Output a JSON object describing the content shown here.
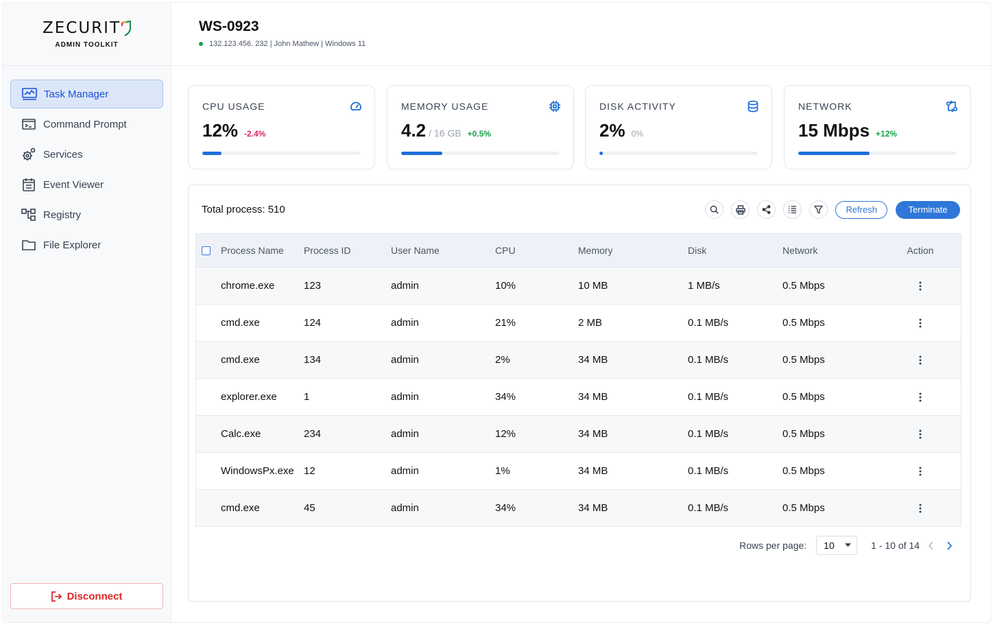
{
  "brand": {
    "name": "ZECURIT",
    "subtitle": "ADMIN TOOLKIT"
  },
  "sidebar": {
    "items": [
      {
        "label": "Task Manager",
        "icon": "chart-monitor-icon",
        "active": true
      },
      {
        "label": "Command Prompt",
        "icon": "terminal-icon"
      },
      {
        "label": "Services",
        "icon": "gears-icon"
      },
      {
        "label": "Event Viewer",
        "icon": "calendar-list-icon"
      },
      {
        "label": "Registry",
        "icon": "hierarchy-icon"
      },
      {
        "label": "File Explorer",
        "icon": "folder-icon"
      }
    ],
    "disconnect_label": "Disconnect"
  },
  "header": {
    "title": "WS-0923",
    "ip": "132.123.456. 232",
    "user": "John Mathew",
    "os": "Windows 11",
    "status_color": "#16a34a"
  },
  "stats": [
    {
      "title": "CPU USAGE",
      "value": "12%",
      "sub": "",
      "delta": "-2.4%",
      "trend": "negative",
      "progress": 0.12,
      "icon": "speedometer-icon"
    },
    {
      "title": "MEMORY USAGE",
      "value": "4.2",
      "sub": "/ 16 GB",
      "delta": "+0.5%",
      "trend": "positive",
      "progress": 0.26,
      "icon": "chip-icon"
    },
    {
      "title": "DISK ACTIVITY",
      "value": "2%",
      "sub": "",
      "delta": "0%",
      "trend": "neutral",
      "progress": 0.02,
      "icon": "database-icon"
    },
    {
      "title": "NETWORK",
      "value": "15 Mbps",
      "sub": "",
      "delta": "+12%",
      "trend": "positive",
      "progress": 0.45,
      "icon": "network-icon"
    }
  ],
  "accent_color": "#2f77d8",
  "processes": {
    "total_label": "Total process: 510",
    "refresh_label": "Refresh",
    "terminate_label": "Terminate",
    "tools": [
      "search-icon",
      "print-icon",
      "share-icon",
      "list-icon",
      "filter-icon"
    ],
    "columns": [
      "Process Name",
      "Process ID",
      "User Name",
      "CPU",
      "Memory",
      "Disk",
      "Network",
      "Action"
    ],
    "rows": [
      [
        "chrome.exe",
        "123",
        "admin",
        "10%",
        "10 MB",
        "1 MB/s",
        "0.5 Mbps"
      ],
      [
        "cmd.exe",
        "124",
        "admin",
        "21%",
        "2 MB",
        "0.1 MB/s",
        "0.5 Mbps"
      ],
      [
        "cmd.exe",
        "134",
        "admin",
        "2%",
        "34 MB",
        "0.1 MB/s",
        "0.5 Mbps"
      ],
      [
        "explorer.exe",
        "1",
        "admin",
        "34%",
        "34 MB",
        "0.1 MB/s",
        "0.5 Mbps"
      ],
      [
        "Calc.exe",
        "234",
        "admin",
        "12%",
        "34 MB",
        "0.1 MB/s",
        "0.5 Mbps"
      ],
      [
        "WindowsPx.exe",
        "12",
        "admin",
        "1%",
        "34 MB",
        "0.1 MB/s",
        "0.5 Mbps"
      ],
      [
        "cmd.exe",
        "45",
        "admin",
        "34%",
        "34 MB",
        "0.1 MB/s",
        "0.5 Mbps"
      ]
    ],
    "pagination": {
      "rows_per_page_label": "Rows per page:",
      "rows_per_page": "10",
      "range": "1 - 10 of 14"
    }
  }
}
